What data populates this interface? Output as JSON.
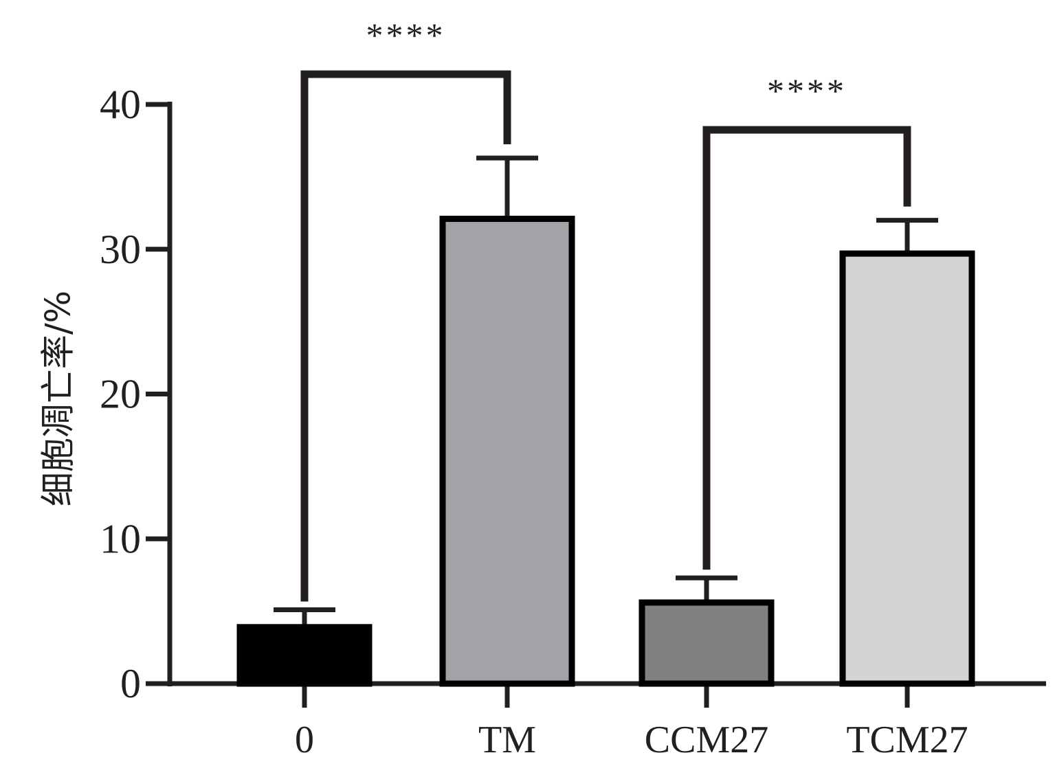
{
  "chart_data": {
    "type": "bar",
    "categories": [
      "0",
      "TM",
      "CCM27",
      "TCM27"
    ],
    "values": [
      3.9,
      32.1,
      5.6,
      29.7
    ],
    "errors": [
      1.2,
      4.2,
      1.7,
      2.3
    ],
    "bar_colors": [
      "#000000",
      "#a3a2a6",
      "#808080",
      "#d4d4d4"
    ],
    "ylabel": "细胞凋亡率/%",
    "ylim": [
      0,
      40
    ],
    "yticks": [
      0,
      10,
      20,
      30,
      40
    ],
    "grid": false,
    "significance": [
      {
        "from": 0,
        "to": 1,
        "label": "****"
      },
      {
        "from": 2,
        "to": 3,
        "label": "****"
      }
    ]
  }
}
